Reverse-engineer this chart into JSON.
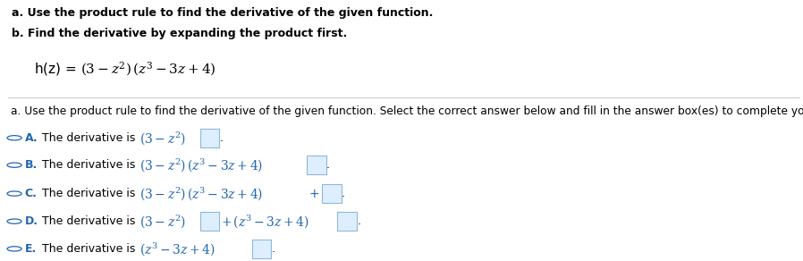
{
  "bg_color": "#ffffff",
  "header1": "a. Use the product rule to find the derivative of the given function.",
  "header2": "b. Find the derivative by expanding the product first.",
  "header_color": "#000000",
  "header_fontsize": 9.0,
  "func_text": "h(z) = ",
  "func_math": "$(3-z^2)\\ (z^3-3z+4)$",
  "func_fontsize": 11,
  "separator_color": "#cccccc",
  "instruction": "a. Use the product rule to find the derivative of the given function. Select the correct answer below and fill in the answer box(es) to complete your choice.",
  "instruction_fontsize": 8.8,
  "math_color": "#2166b0",
  "option_color": "#2166b0",
  "circle_color": "#2166b0",
  "text_color": "#000000",
  "option_fontsize": 9.0,
  "math_fontsize": 10.0,
  "box_edge_color": "#90b8d8",
  "box_face_color": "#ddeeff"
}
